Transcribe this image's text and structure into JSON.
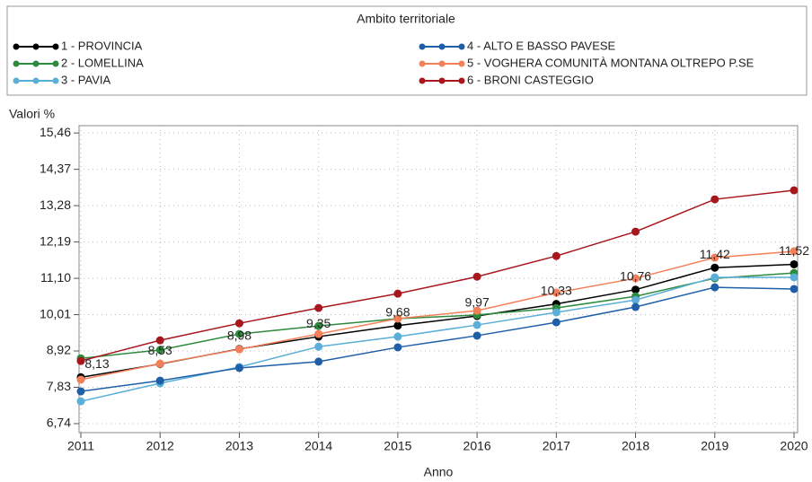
{
  "chart_data": {
    "type": "line",
    "legend_title": "Ambito territoriale",
    "y_label": "Valori %",
    "x_label": "Anno",
    "x": [
      2011,
      2012,
      2013,
      2014,
      2015,
      2016,
      2017,
      2018,
      2019,
      2020
    ],
    "xlim": [
      2011,
      2020
    ],
    "xticks": [
      2011,
      2012,
      2013,
      2014,
      2015,
      2016,
      2017,
      2018,
      2019,
      2020
    ],
    "ylim": [
      6.47,
      15.68
    ],
    "yticks": [
      {
        "value": 6.74,
        "label": "6,74"
      },
      {
        "value": 7.83,
        "label": "7,83"
      },
      {
        "value": 8.92,
        "label": "8,92"
      },
      {
        "value": 10.01,
        "label": "10,01"
      },
      {
        "value": 11.1,
        "label": "11,10"
      },
      {
        "value": 12.19,
        "label": "12,19"
      },
      {
        "value": 13.28,
        "label": "13,28"
      },
      {
        "value": 14.37,
        "label": "14,37"
      },
      {
        "value": 15.46,
        "label": "15,46"
      }
    ],
    "grid": true,
    "series": [
      {
        "name": "1 - PROVINCIA",
        "color": "#000000",
        "values": [
          8.13,
          8.53,
          8.98,
          9.35,
          9.68,
          9.97,
          10.33,
          10.76,
          11.42,
          11.52
        ],
        "value_labels": [
          "8,13",
          "8,53",
          "8,98",
          "9,35",
          "9,68",
          "9,97",
          "10,33",
          "10,76",
          "11,42",
          "11,52"
        ]
      },
      {
        "name": "2 - LOMELLINA",
        "color": "#2e8b3e",
        "values": [
          8.7,
          8.95,
          9.43,
          9.67,
          9.89,
          10.0,
          10.21,
          10.56,
          11.1,
          11.26
        ]
      },
      {
        "name": "3 - PAVIA",
        "color": "#5aaed8",
        "values": [
          7.41,
          7.95,
          8.44,
          9.05,
          9.35,
          9.7,
          10.08,
          10.45,
          11.13,
          11.13
        ]
      },
      {
        "name": "4 - ALTO E BASSO PAVESE",
        "color": "#1f5fa8",
        "values": [
          7.71,
          8.03,
          8.41,
          8.6,
          9.03,
          9.38,
          9.78,
          10.24,
          10.83,
          10.78
        ]
      },
      {
        "name": "5 - VOGHERA  COMUNITÀ MONTANA OLTREPO P.SE",
        "color": "#f4805a",
        "values": [
          8.06,
          8.54,
          8.97,
          9.43,
          9.89,
          10.13,
          10.67,
          11.1,
          11.72,
          11.91
        ]
      },
      {
        "name": "6 - BRONI  CASTEGGIO",
        "color": "#a8161e",
        "values": [
          8.62,
          9.24,
          9.75,
          10.21,
          10.64,
          11.15,
          11.77,
          12.5,
          13.47,
          13.74
        ]
      }
    ]
  }
}
